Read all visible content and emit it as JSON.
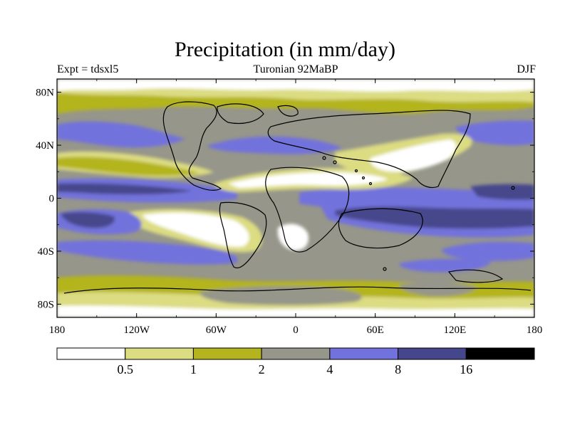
{
  "title": "Precipitation (in mm/day)",
  "subtitle_left": "Expt = tdsxl5",
  "subtitle_center": "Turonian  92MaBP",
  "subtitle_right": "DJF",
  "x_ticks": [
    "180",
    "120W",
    "60W",
    "0",
    "60E",
    "120E",
    "180"
  ],
  "y_ticks": [
    "80N",
    "40N",
    "0",
    "40S",
    "80S"
  ],
  "colorbar": {
    "labels": [
      "0.5",
      "1",
      "2",
      "4",
      "8",
      "16"
    ],
    "colors": [
      "#ffffff",
      "#dcdc82",
      "#b4b41e",
      "#96968a",
      "#7272dc",
      "#46468c",
      "#000000"
    ]
  },
  "chart_data": {
    "type": "heatmap",
    "title": "Precipitation (in mm/day)",
    "xlabel": "",
    "ylabel": "",
    "x_range": [
      -180,
      180
    ],
    "y_range": [
      -90,
      90
    ],
    "levels": [
      0.5,
      1,
      2,
      4,
      8,
      16
    ]
  }
}
